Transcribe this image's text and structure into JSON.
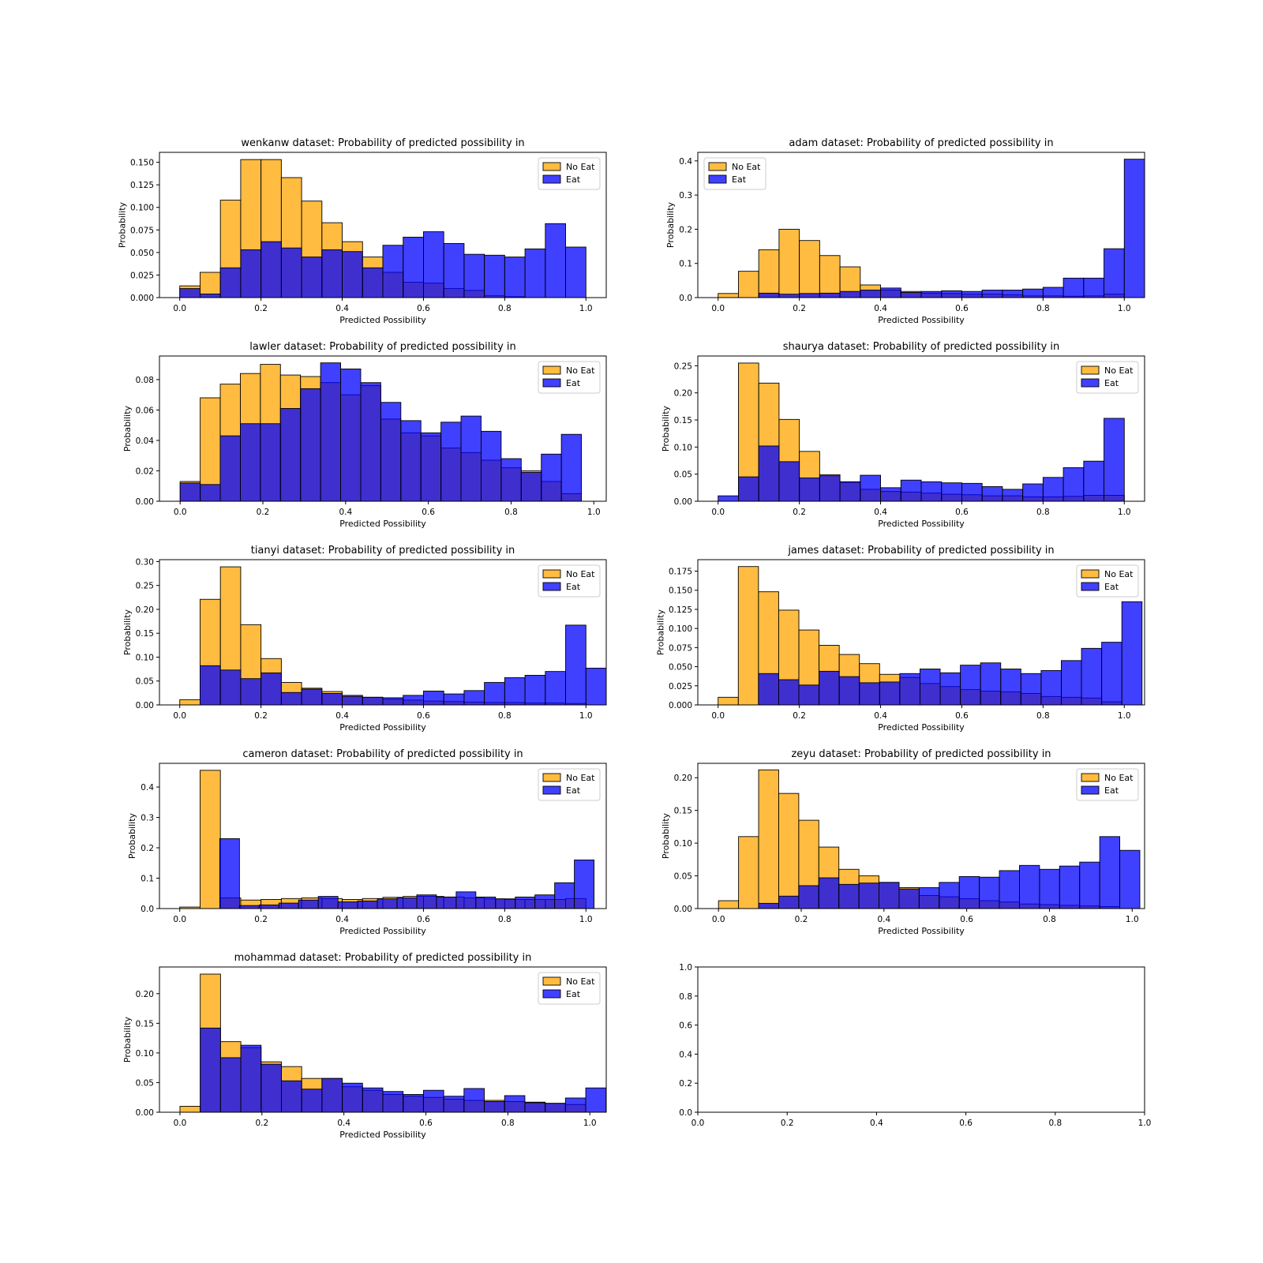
{
  "colors": {
    "no_eat": "#FFA500",
    "eat": "#0000FF",
    "edge": "#000000"
  },
  "legend_labels": [
    "No Eat",
    "Eat"
  ],
  "chart_data": [
    {
      "type": "bar",
      "title": "wenkanw dataset: Probability of predicted possibility in",
      "xlabel": "Predicted Possibility",
      "ylabel": "Probability",
      "xlim": [
        -0.05,
        1.05
      ],
      "ylim": [
        0,
        0.161
      ],
      "xticks": [
        "0.0",
        "0.2",
        "0.4",
        "0.6",
        "0.8",
        "1.0"
      ],
      "yticks": [
        "0.000",
        "0.025",
        "0.050",
        "0.075",
        "0.100",
        "0.125",
        "0.150"
      ],
      "legend_position": "upper right",
      "series": [
        {
          "name": "No Eat",
          "bin_start": 0.0,
          "bin_width": 0.05,
          "values": [
            0.013,
            0.028,
            0.108,
            0.153,
            0.153,
            0.133,
            0.107,
            0.083,
            0.062,
            0.045,
            0.028,
            0.017,
            0.016,
            0.01,
            0.008,
            0.002,
            0.001,
            0.0,
            0.0,
            0.0
          ]
        },
        {
          "name": "Eat",
          "bin_start": 0.0,
          "bin_width": 0.05,
          "values": [
            0.01,
            0.004,
            0.033,
            0.053,
            0.062,
            0.055,
            0.045,
            0.053,
            0.051,
            0.033,
            0.058,
            0.067,
            0.073,
            0.06,
            0.048,
            0.047,
            0.045,
            0.054,
            0.082,
            0.056
          ]
        }
      ]
    },
    {
      "type": "bar",
      "title": "adam dataset: Probability of predicted possibility in",
      "xlabel": "Predicted Possibility",
      "ylabel": "Probability",
      "xlim": [
        -0.05,
        1.05
      ],
      "ylim": [
        0,
        0.425
      ],
      "xticks": [
        "0.0",
        "0.2",
        "0.4",
        "0.6",
        "0.8",
        "1.0"
      ],
      "yticks": [
        "0.0",
        "0.1",
        "0.2",
        "0.3",
        "0.4"
      ],
      "legend_position": "upper left",
      "series": [
        {
          "name": "No Eat",
          "bin_start": 0.0,
          "bin_width": 0.05,
          "values": [
            0.012,
            0.077,
            0.14,
            0.2,
            0.167,
            0.123,
            0.09,
            0.037,
            0.022,
            0.018,
            0.013,
            0.012,
            0.01,
            0.01,
            0.008,
            0.005,
            0.005,
            0.004,
            0.005,
            0.01
          ]
        },
        {
          "name": "Eat",
          "bin_start": 0.0,
          "bin_width": 0.05,
          "values": [
            0.0,
            0.0,
            0.013,
            0.01,
            0.012,
            0.013,
            0.018,
            0.022,
            0.028,
            0.015,
            0.018,
            0.02,
            0.018,
            0.022,
            0.022,
            0.025,
            0.03,
            0.057,
            0.057,
            0.143,
            0.405
          ]
        }
      ]
    },
    {
      "type": "bar",
      "title": "lawler dataset: Probability of predicted possibility in",
      "xlabel": "Predicted Possibility",
      "ylabel": "Probability",
      "xlim": [
        -0.05,
        1.03
      ],
      "ylim": [
        0,
        0.0955
      ],
      "xticks": [
        "0.0",
        "0.2",
        "0.4",
        "0.6",
        "0.8",
        "1.0"
      ],
      "yticks": [
        "0.00",
        "0.02",
        "0.04",
        "0.06",
        "0.08"
      ],
      "legend_position": "upper right",
      "series": [
        {
          "name": "No Eat",
          "bin_start": 0.0,
          "bin_width": 0.0485,
          "values": [
            0.013,
            0.068,
            0.077,
            0.084,
            0.09,
            0.083,
            0.082,
            0.078,
            0.07,
            0.076,
            0.054,
            0.045,
            0.043,
            0.035,
            0.032,
            0.027,
            0.022,
            0.02,
            0.013,
            0.005
          ]
        },
        {
          "name": "Eat",
          "bin_start": 0.0,
          "bin_width": 0.0485,
          "values": [
            0.012,
            0.011,
            0.043,
            0.051,
            0.051,
            0.061,
            0.074,
            0.091,
            0.087,
            0.078,
            0.065,
            0.053,
            0.045,
            0.052,
            0.056,
            0.046,
            0.028,
            0.019,
            0.031,
            0.044
          ]
        }
      ]
    },
    {
      "type": "bar",
      "title": "shaurya dataset: Probability of predicted possibility in",
      "xlabel": "Predicted Possibility",
      "ylabel": "Probability",
      "xlim": [
        -0.05,
        1.05
      ],
      "ylim": [
        0,
        0.268
      ],
      "xticks": [
        "0.0",
        "0.2",
        "0.4",
        "0.6",
        "0.8",
        "1.0"
      ],
      "yticks": [
        "0.00",
        "0.05",
        "0.10",
        "0.15",
        "0.20",
        "0.25"
      ],
      "legend_position": "upper right",
      "series": [
        {
          "name": "No Eat",
          "bin_start": 0.0,
          "bin_width": 0.05,
          "values": [
            0.0,
            0.255,
            0.218,
            0.151,
            0.092,
            0.049,
            0.035,
            0.022,
            0.018,
            0.017,
            0.015,
            0.013,
            0.012,
            0.01,
            0.01,
            0.008,
            0.008,
            0.009,
            0.011,
            0.011
          ]
        },
        {
          "name": "Eat",
          "bin_start": 0.0,
          "bin_width": 0.05,
          "values": [
            0.01,
            0.045,
            0.102,
            0.073,
            0.043,
            0.047,
            0.036,
            0.048,
            0.025,
            0.039,
            0.036,
            0.034,
            0.033,
            0.027,
            0.022,
            0.032,
            0.044,
            0.062,
            0.074,
            0.153
          ]
        }
      ]
    },
    {
      "type": "bar",
      "title": "tianyi dataset: Probability of predicted possibility in",
      "xlabel": "Predicted Possibility",
      "ylabel": "Probability",
      "xlim": [
        -0.05,
        1.05
      ],
      "ylim": [
        0,
        0.304
      ],
      "xticks": [
        "0.0",
        "0.2",
        "0.4",
        "0.6",
        "0.8",
        "1.0"
      ],
      "yticks": [
        "0.00",
        "0.05",
        "0.10",
        "0.15",
        "0.20",
        "0.25",
        "0.30"
      ],
      "legend_position": "upper right",
      "series": [
        {
          "name": "No Eat",
          "bin_start": 0.0,
          "bin_width": 0.05,
          "values": [
            0.011,
            0.221,
            0.289,
            0.168,
            0.097,
            0.047,
            0.035,
            0.028,
            0.02,
            0.016,
            0.012,
            0.01,
            0.008,
            0.007,
            0.006,
            0.005,
            0.005,
            0.004,
            0.004,
            0.003
          ]
        },
        {
          "name": "Eat",
          "bin_start": 0.0,
          "bin_width": 0.05,
          "values": [
            0.0,
            0.082,
            0.073,
            0.055,
            0.067,
            0.026,
            0.033,
            0.024,
            0.018,
            0.016,
            0.015,
            0.02,
            0.029,
            0.023,
            0.03,
            0.047,
            0.057,
            0.062,
            0.07,
            0.167,
            0.077
          ]
        }
      ]
    },
    {
      "type": "bar",
      "title": "james dataset: Probability of predicted possibility in",
      "xlabel": "Predicted Possibility",
      "ylabel": "Probability",
      "xlim": [
        -0.05,
        1.05
      ],
      "ylim": [
        0,
        0.19
      ],
      "xticks": [
        "0.0",
        "0.2",
        "0.4",
        "0.6",
        "0.8",
        "1.0"
      ],
      "yticks": [
        "0.000",
        "0.025",
        "0.050",
        "0.075",
        "0.100",
        "0.125",
        "0.150",
        "0.175"
      ],
      "legend_position": "upper right",
      "series": [
        {
          "name": "No Eat",
          "bin_start": 0.0,
          "bin_width": 0.0497,
          "values": [
            0.01,
            0.181,
            0.148,
            0.124,
            0.098,
            0.078,
            0.066,
            0.054,
            0.04,
            0.036,
            0.028,
            0.024,
            0.02,
            0.018,
            0.017,
            0.015,
            0.011,
            0.01,
            0.009,
            0.004
          ]
        },
        {
          "name": "Eat",
          "bin_start": 0.0,
          "bin_width": 0.0497,
          "values": [
            0.0,
            0.0,
            0.041,
            0.033,
            0.026,
            0.044,
            0.037,
            0.029,
            0.03,
            0.041,
            0.047,
            0.042,
            0.052,
            0.055,
            0.047,
            0.041,
            0.045,
            0.058,
            0.074,
            0.082,
            0.135
          ]
        }
      ]
    },
    {
      "type": "bar",
      "title": "cameron dataset: Probability of predicted possibility in",
      "xlabel": "Predicted Possibility",
      "ylabel": "Probability",
      "xlim": [
        -0.05,
        1.05
      ],
      "ylim": [
        0,
        0.478
      ],
      "xticks": [
        "0.0",
        "0.2",
        "0.4",
        "0.6",
        "0.8",
        "1.0"
      ],
      "yticks": [
        "0.0",
        "0.1",
        "0.2",
        "0.3",
        "0.4"
      ],
      "legend_position": "upper right",
      "series": [
        {
          "name": "No Eat",
          "bin_start": 0.0,
          "bin_width": 0.05,
          "values": [
            0.005,
            0.455,
            0.035,
            0.028,
            0.03,
            0.033,
            0.035,
            0.033,
            0.03,
            0.033,
            0.037,
            0.04,
            0.04,
            0.038,
            0.035,
            0.032,
            0.03,
            0.03,
            0.03,
            0.033
          ]
        },
        {
          "name": "Eat",
          "bin_start": 0.05,
          "bin_width": 0.0485,
          "values": [
            0.0,
            0.23,
            0.01,
            0.012,
            0.018,
            0.028,
            0.04,
            0.022,
            0.025,
            0.032,
            0.035,
            0.045,
            0.038,
            0.055,
            0.038,
            0.032,
            0.038,
            0.045,
            0.085,
            0.16
          ]
        }
      ]
    },
    {
      "type": "bar",
      "title": "zeyu dataset: Probability of predicted possibility in",
      "xlabel": "Predicted Possibility",
      "ylabel": "Probability",
      "xlim": [
        -0.05,
        1.03
      ],
      "ylim": [
        0,
        0.222
      ],
      "xticks": [
        "0.0",
        "0.2",
        "0.4",
        "0.6",
        "0.8",
        "1.0"
      ],
      "yticks": [
        "0.00",
        "0.05",
        "0.10",
        "0.15",
        "0.20"
      ],
      "legend_position": "upper right",
      "series": [
        {
          "name": "No Eat",
          "bin_start": 0.0,
          "bin_width": 0.0485,
          "values": [
            0.012,
            0.11,
            0.212,
            0.176,
            0.135,
            0.094,
            0.06,
            0.05,
            0.04,
            0.032,
            0.02,
            0.018,
            0.015,
            0.012,
            0.01,
            0.007,
            0.006,
            0.005,
            0.004,
            0.003
          ]
        },
        {
          "name": "Eat",
          "bin_start": 0.0,
          "bin_width": 0.0485,
          "values": [
            0.0,
            0.0,
            0.008,
            0.019,
            0.035,
            0.047,
            0.037,
            0.039,
            0.04,
            0.03,
            0.032,
            0.04,
            0.049,
            0.048,
            0.058,
            0.066,
            0.06,
            0.065,
            0.071,
            0.11,
            0.089
          ]
        }
      ]
    },
    {
      "type": "bar",
      "title": "mohammad dataset: Probability of predicted possibility in",
      "xlabel": "Predicted Possibility",
      "ylabel": "Probability",
      "xlim": [
        -0.05,
        1.04
      ],
      "ylim": [
        0,
        0.245
      ],
      "xticks": [
        "0.0",
        "0.2",
        "0.4",
        "0.6",
        "0.8",
        "1.0"
      ],
      "yticks": [
        "0.00",
        "0.05",
        "0.10",
        "0.15",
        "0.20"
      ],
      "legend_position": "upper right",
      "series": [
        {
          "name": "No Eat",
          "bin_start": 0.0,
          "bin_width": 0.0495,
          "values": [
            0.01,
            0.233,
            0.119,
            0.109,
            0.085,
            0.077,
            0.057,
            0.057,
            0.043,
            0.037,
            0.03,
            0.027,
            0.025,
            0.022,
            0.02,
            0.02,
            0.018,
            0.017,
            0.015,
            0.013
          ]
        },
        {
          "name": "Eat",
          "bin_start": 0.0,
          "bin_width": 0.0495,
          "values": [
            0.0,
            0.142,
            0.092,
            0.113,
            0.081,
            0.053,
            0.039,
            0.057,
            0.049,
            0.041,
            0.035,
            0.03,
            0.037,
            0.027,
            0.04,
            0.018,
            0.028,
            0.016,
            0.015,
            0.024,
            0.041
          ]
        }
      ]
    },
    {
      "type": "empty",
      "title": "",
      "xlim": [
        0,
        1
      ],
      "ylim": [
        0,
        1
      ],
      "xticks": [
        "0.0",
        "0.2",
        "0.4",
        "0.6",
        "0.8",
        "1.0"
      ],
      "yticks": [
        "0.0",
        "0.2",
        "0.4",
        "0.6",
        "0.8",
        "1.0"
      ]
    }
  ]
}
